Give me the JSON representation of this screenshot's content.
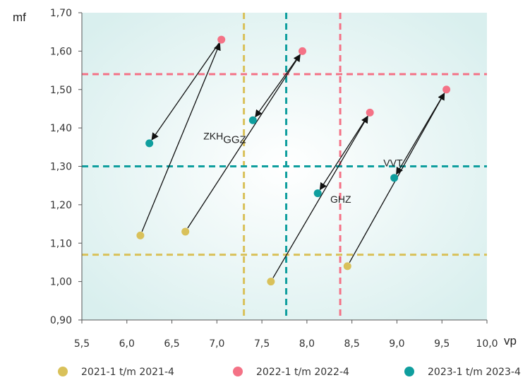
{
  "chart_data": {
    "type": "scatter",
    "xlabel": "vp",
    "ylabel": "mf",
    "xlim": [
      5.5,
      10.0
    ],
    "ylim": [
      0.9,
      1.7
    ],
    "xticks": [
      "5,5",
      "6,0",
      "6,5",
      "7,0",
      "7,5",
      "8,0",
      "8,5",
      "9,0",
      "9,5",
      "10,0"
    ],
    "yticks": [
      "0,90",
      "1,00",
      "1,10",
      "1,20",
      "1,30",
      "1,40",
      "1,50",
      "1,60",
      "1,70"
    ],
    "series": [
      {
        "name": "2021-1 t/m 2021-4",
        "color": "#d9c15a",
        "points": [
          [
            6.15,
            1.12
          ],
          [
            6.65,
            1.13
          ],
          [
            7.6,
            1.0
          ],
          [
            8.45,
            1.04
          ]
        ]
      },
      {
        "name": "2022-1 t/m 2022-4",
        "color": "#f47286",
        "points": [
          [
            7.05,
            1.63
          ],
          [
            7.95,
            1.6
          ],
          [
            8.7,
            1.44
          ],
          [
            9.55,
            1.5
          ]
        ]
      },
      {
        "name": "2023-1 t/m 2023-4",
        "color": "#0f9e9e",
        "points": [
          [
            6.25,
            1.36
          ],
          [
            7.4,
            1.42
          ],
          [
            8.12,
            1.23
          ],
          [
            8.97,
            1.27
          ]
        ]
      }
    ],
    "reference_lines": [
      {
        "orientation": "vertical",
        "value": 7.3,
        "color": "#d9c15a"
      },
      {
        "orientation": "vertical",
        "value": 7.77,
        "color": "#0f9e9e"
      },
      {
        "orientation": "vertical",
        "value": 8.37,
        "color": "#f47286"
      },
      {
        "orientation": "horizontal",
        "value": 1.54,
        "color": "#f47286"
      },
      {
        "orientation": "horizontal",
        "value": 1.3,
        "color": "#0f9e9e"
      },
      {
        "orientation": "horizontal",
        "value": 1.07,
        "color": "#d9c15a"
      }
    ],
    "arrows": [
      {
        "from": [
          6.15,
          1.12
        ],
        "to": [
          7.05,
          1.63
        ]
      },
      {
        "from": [
          7.05,
          1.63
        ],
        "to": [
          6.25,
          1.36
        ]
      },
      {
        "from": [
          6.65,
          1.13
        ],
        "to": [
          7.95,
          1.6
        ]
      },
      {
        "from": [
          7.95,
          1.6
        ],
        "to": [
          7.4,
          1.42
        ]
      },
      {
        "from": [
          7.6,
          1.0
        ],
        "to": [
          8.7,
          1.44
        ]
      },
      {
        "from": [
          8.7,
          1.44
        ],
        "to": [
          8.12,
          1.23
        ]
      },
      {
        "from": [
          8.45,
          1.04
        ],
        "to": [
          9.55,
          1.5
        ]
      },
      {
        "from": [
          9.55,
          1.5
        ],
        "to": [
          8.97,
          1.27
        ]
      }
    ],
    "annotations": [
      {
        "main": "ZKH",
        "sub": "GGZ",
        "x": 6.85,
        "y": 1.37
      },
      {
        "main": "VVT",
        "sub": "",
        "x": 8.85,
        "y": 1.3
      },
      {
        "main": "GHZ",
        "sub": "",
        "x": 8.26,
        "y": 1.205
      }
    ],
    "grid": false,
    "legend_position": "bottom"
  }
}
